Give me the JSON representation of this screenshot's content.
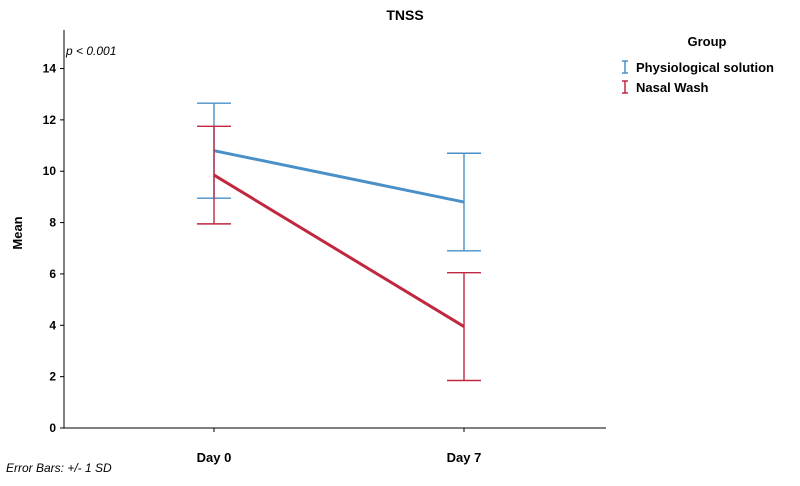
{
  "chart_data": {
    "type": "line",
    "title": "TNSS",
    "xlabel": "",
    "ylabel": "Mean",
    "categories": [
      "Day 0",
      "Day 7"
    ],
    "ylim": [
      0,
      15.5
    ],
    "yticks": [
      0,
      2,
      4,
      6,
      8,
      10,
      12,
      14
    ],
    "grid": false,
    "annotation": "p < 0.001",
    "footnote": "Error Bars: +/- 1 SD",
    "legend": {
      "title": "Group",
      "placement": "top-right"
    },
    "series": [
      {
        "name": "Physiological solution",
        "color": "#4a90c8",
        "values": [
          10.8,
          8.8
        ],
        "sd": [
          1.85,
          1.9
        ]
      },
      {
        "name": "Nasal Wash",
        "color": "#c0283f",
        "values": [
          9.85,
          3.95
        ],
        "sd": [
          1.9,
          2.1
        ]
      }
    ]
  }
}
